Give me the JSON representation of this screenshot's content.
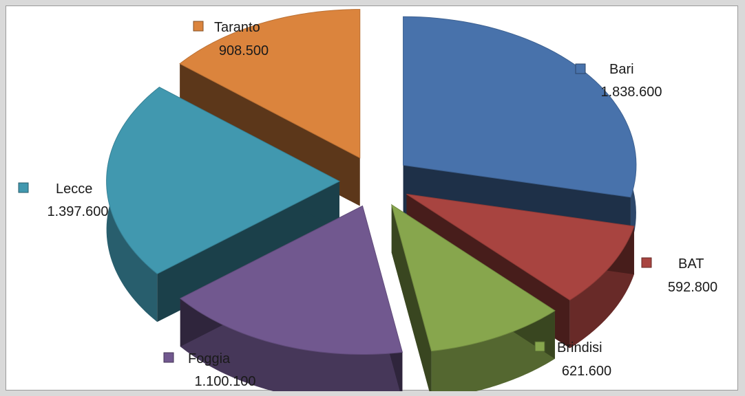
{
  "chart_data": {
    "type": "pie",
    "style": "3d-exploded",
    "title": "",
    "legend_placement": "inline-labels",
    "slices": [
      {
        "name": "Bari",
        "value": 1838600,
        "label": "1.838.600",
        "color": "#4872ab"
      },
      {
        "name": "BAT",
        "value": 592800,
        "label": "592.800",
        "color": "#a84440"
      },
      {
        "name": "Brindisi",
        "value": 621600,
        "label": "621.600",
        "color": "#87a64d"
      },
      {
        "name": "Foggia",
        "value": 1100100,
        "label": "1.100.100",
        "color": "#71588f"
      },
      {
        "name": "Lecce",
        "value": 1397600,
        "label": "1.397.600",
        "color": "#4198af"
      },
      {
        "name": "Taranto",
        "value": 908500,
        "label": "908.500",
        "color": "#db843d"
      }
    ]
  }
}
